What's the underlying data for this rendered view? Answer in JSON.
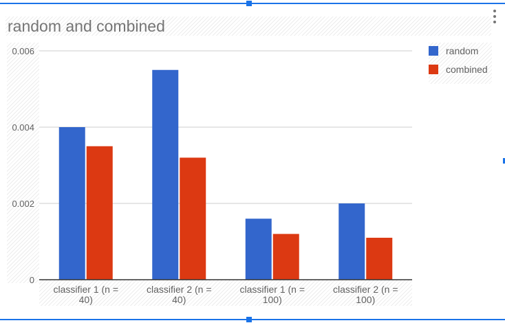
{
  "chart_data": {
    "type": "bar",
    "title": "random and combined",
    "xlabel": "",
    "ylabel": "",
    "categories": [
      [
        "classifier 1 (n =",
        "40)"
      ],
      [
        "classifier 2 (n =",
        "40)"
      ],
      [
        "classifier 1 (n =",
        "100)"
      ],
      [
        "classifier 2 (n =",
        "100)"
      ]
    ],
    "series": [
      {
        "name": "random",
        "color": "#3366cc",
        "values": [
          0.004,
          0.0055,
          0.0016,
          0.002
        ]
      },
      {
        "name": "combined",
        "color": "#dc3912",
        "values": [
          0.0035,
          0.0032,
          0.0012,
          0.0011
        ]
      }
    ],
    "ylim": [
      0,
      0.006
    ],
    "yticks": [
      0,
      0.002,
      0.004,
      0.006
    ],
    "ytick_labels": [
      "0",
      "0.002",
      "0.004",
      "0.006"
    ],
    "grid": true,
    "legend_position": "right"
  },
  "menu": {
    "icon": "more-vert-icon"
  },
  "colors": {
    "selection": "#1a73e8",
    "gridline": "#cccccc",
    "axis_text": "#616161"
  }
}
